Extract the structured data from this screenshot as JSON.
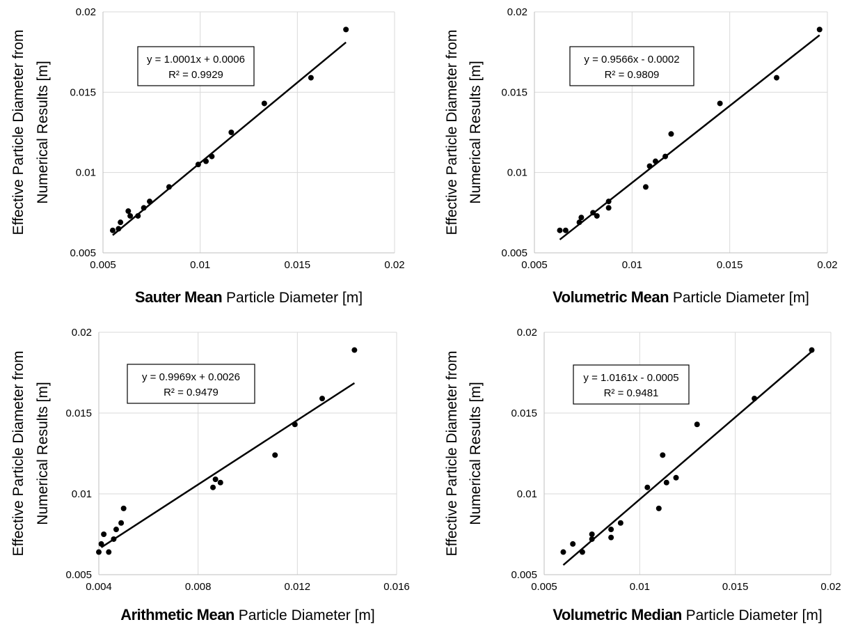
{
  "chart_data": [
    {
      "type": "scatter",
      "ylabel_line1": "Effective Particle Diameter from",
      "ylabel_line2": "Numerical Results [m]",
      "xlabel_bold": "Sauter Mean",
      "xlabel_rest": " Particle Diameter [m]",
      "xlim": [
        0.005,
        0.02
      ],
      "ylim": [
        0.005,
        0.02
      ],
      "xticks": [
        0.005,
        0.01,
        0.015,
        0.02
      ],
      "xtick_labels": [
        "0.005",
        "0.01",
        "0.015",
        "0.02"
      ],
      "yticks": [
        0.005,
        0.01,
        0.015,
        0.02
      ],
      "ytick_labels": [
        "0.005",
        "0.01",
        "0.015",
        "0.02"
      ],
      "grid": true,
      "equation": "y = 1.0001x + 0.0006",
      "r_squared": "R² = 0.9929",
      "trendline": {
        "slope": 1.0001,
        "intercept": 0.0006,
        "x_range": [
          0.0055,
          0.0175
        ]
      },
      "points": [
        [
          0.0055,
          0.0064
        ],
        [
          0.0058,
          0.0065
        ],
        [
          0.0059,
          0.0069
        ],
        [
          0.0063,
          0.0076
        ],
        [
          0.0064,
          0.0073
        ],
        [
          0.0068,
          0.0073
        ],
        [
          0.0071,
          0.0078
        ],
        [
          0.0074,
          0.0082
        ],
        [
          0.0084,
          0.0091
        ],
        [
          0.0099,
          0.0105
        ],
        [
          0.0103,
          0.0107
        ],
        [
          0.0106,
          0.011
        ],
        [
          0.0116,
          0.0125
        ],
        [
          0.0133,
          0.0143
        ],
        [
          0.0157,
          0.0159
        ],
        [
          0.0175,
          0.0189
        ]
      ]
    },
    {
      "type": "scatter",
      "ylabel_line1": "Effective Particle Diameter from",
      "ylabel_line2": "Numerical Results [m]",
      "xlabel_bold": "Volumetric Mean",
      "xlabel_rest": " Particle Diameter [m]",
      "xlim": [
        0.005,
        0.02
      ],
      "ylim": [
        0.005,
        0.02
      ],
      "xticks": [
        0.005,
        0.01,
        0.015,
        0.02
      ],
      "xtick_labels": [
        "0.005",
        "0.01",
        "0.015",
        "0.02"
      ],
      "yticks": [
        0.005,
        0.01,
        0.015,
        0.02
      ],
      "ytick_labels": [
        "0.005",
        "0.01",
        "0.015",
        "0.02"
      ],
      "grid": true,
      "equation": "y = 0.9566x - 0.0002",
      "r_squared": "R² = 0.9809",
      "trendline": {
        "slope": 0.9566,
        "intercept": -0.0002,
        "x_range": [
          0.0063,
          0.0196
        ]
      },
      "points": [
        [
          0.0063,
          0.0064
        ],
        [
          0.0066,
          0.0064
        ],
        [
          0.0073,
          0.0069
        ],
        [
          0.0074,
          0.0072
        ],
        [
          0.008,
          0.0075
        ],
        [
          0.0082,
          0.0073
        ],
        [
          0.0088,
          0.0078
        ],
        [
          0.0088,
          0.0082
        ],
        [
          0.0107,
          0.0091
        ],
        [
          0.0109,
          0.0104
        ],
        [
          0.0112,
          0.0107
        ],
        [
          0.0117,
          0.011
        ],
        [
          0.012,
          0.0124
        ],
        [
          0.0145,
          0.0143
        ],
        [
          0.0174,
          0.0159
        ],
        [
          0.0196,
          0.0189
        ]
      ]
    },
    {
      "type": "scatter",
      "ylabel_line1": "Effective Particle Diameter from",
      "ylabel_line2": "Numerical Results [m]",
      "xlabel_bold": "Arithmetic Mean",
      "xlabel_rest": " Particle Diameter [m]",
      "xlim": [
        0.004,
        0.016
      ],
      "ylim": [
        0.005,
        0.02
      ],
      "xticks": [
        0.004,
        0.008,
        0.012,
        0.016
      ],
      "xtick_labels": [
        "0.004",
        "0.008",
        "0.012",
        "0.016"
      ],
      "yticks": [
        0.005,
        0.01,
        0.015,
        0.02
      ],
      "ytick_labels": [
        "0.005",
        "0.01",
        "0.015",
        "0.02"
      ],
      "grid": true,
      "equation": "y = 0.9969x + 0.0026",
      "r_squared": "R² = 0.9479",
      "trendline": {
        "slope": 0.9969,
        "intercept": 0.0026,
        "x_range": [
          0.0041,
          0.0143
        ]
      },
      "points": [
        [
          0.004,
          0.0064
        ],
        [
          0.0041,
          0.0069
        ],
        [
          0.0042,
          0.0075
        ],
        [
          0.0044,
          0.0064
        ],
        [
          0.0046,
          0.0072
        ],
        [
          0.0047,
          0.0078
        ],
        [
          0.0049,
          0.0082
        ],
        [
          0.005,
          0.0091
        ],
        [
          0.0086,
          0.0104
        ],
        [
          0.0087,
          0.0109
        ],
        [
          0.0089,
          0.0107
        ],
        [
          0.0111,
          0.0124
        ],
        [
          0.0119,
          0.0143
        ],
        [
          0.013,
          0.0159
        ],
        [
          0.0143,
          0.0189
        ]
      ]
    },
    {
      "type": "scatter",
      "ylabel_line1": "Effective Particle Diameter from",
      "ylabel_line2": "Numerical Results [m]",
      "xlabel_bold": "Volumetric Median",
      "xlabel_rest": " Particle Diameter [m]",
      "xlim": [
        0.005,
        0.02
      ],
      "ylim": [
        0.005,
        0.02
      ],
      "xticks": [
        0.005,
        0.01,
        0.015,
        0.02
      ],
      "xtick_labels": [
        "0.005",
        "0.01",
        "0.015",
        "0.02"
      ],
      "yticks": [
        0.005,
        0.01,
        0.015,
        0.02
      ],
      "ytick_labels": [
        "0.005",
        "0.01",
        "0.015",
        "0.02"
      ],
      "grid": true,
      "equation": "y = 1.0161x - 0.0005",
      "r_squared": "R² = 0.9481",
      "trendline": {
        "slope": 1.0161,
        "intercept": -0.0005,
        "x_range": [
          0.006,
          0.019
        ]
      },
      "points": [
        [
          0.006,
          0.0064
        ],
        [
          0.0065,
          0.0069
        ],
        [
          0.007,
          0.0064
        ],
        [
          0.0075,
          0.0072
        ],
        [
          0.0075,
          0.0075
        ],
        [
          0.0085,
          0.0073
        ],
        [
          0.0085,
          0.0078
        ],
        [
          0.009,
          0.0082
        ],
        [
          0.0104,
          0.0104
        ],
        [
          0.011,
          0.0091
        ],
        [
          0.0112,
          0.0124
        ],
        [
          0.0114,
          0.0107
        ],
        [
          0.0119,
          0.011
        ],
        [
          0.013,
          0.0143
        ],
        [
          0.016,
          0.0159
        ],
        [
          0.019,
          0.0189
        ]
      ]
    }
  ]
}
